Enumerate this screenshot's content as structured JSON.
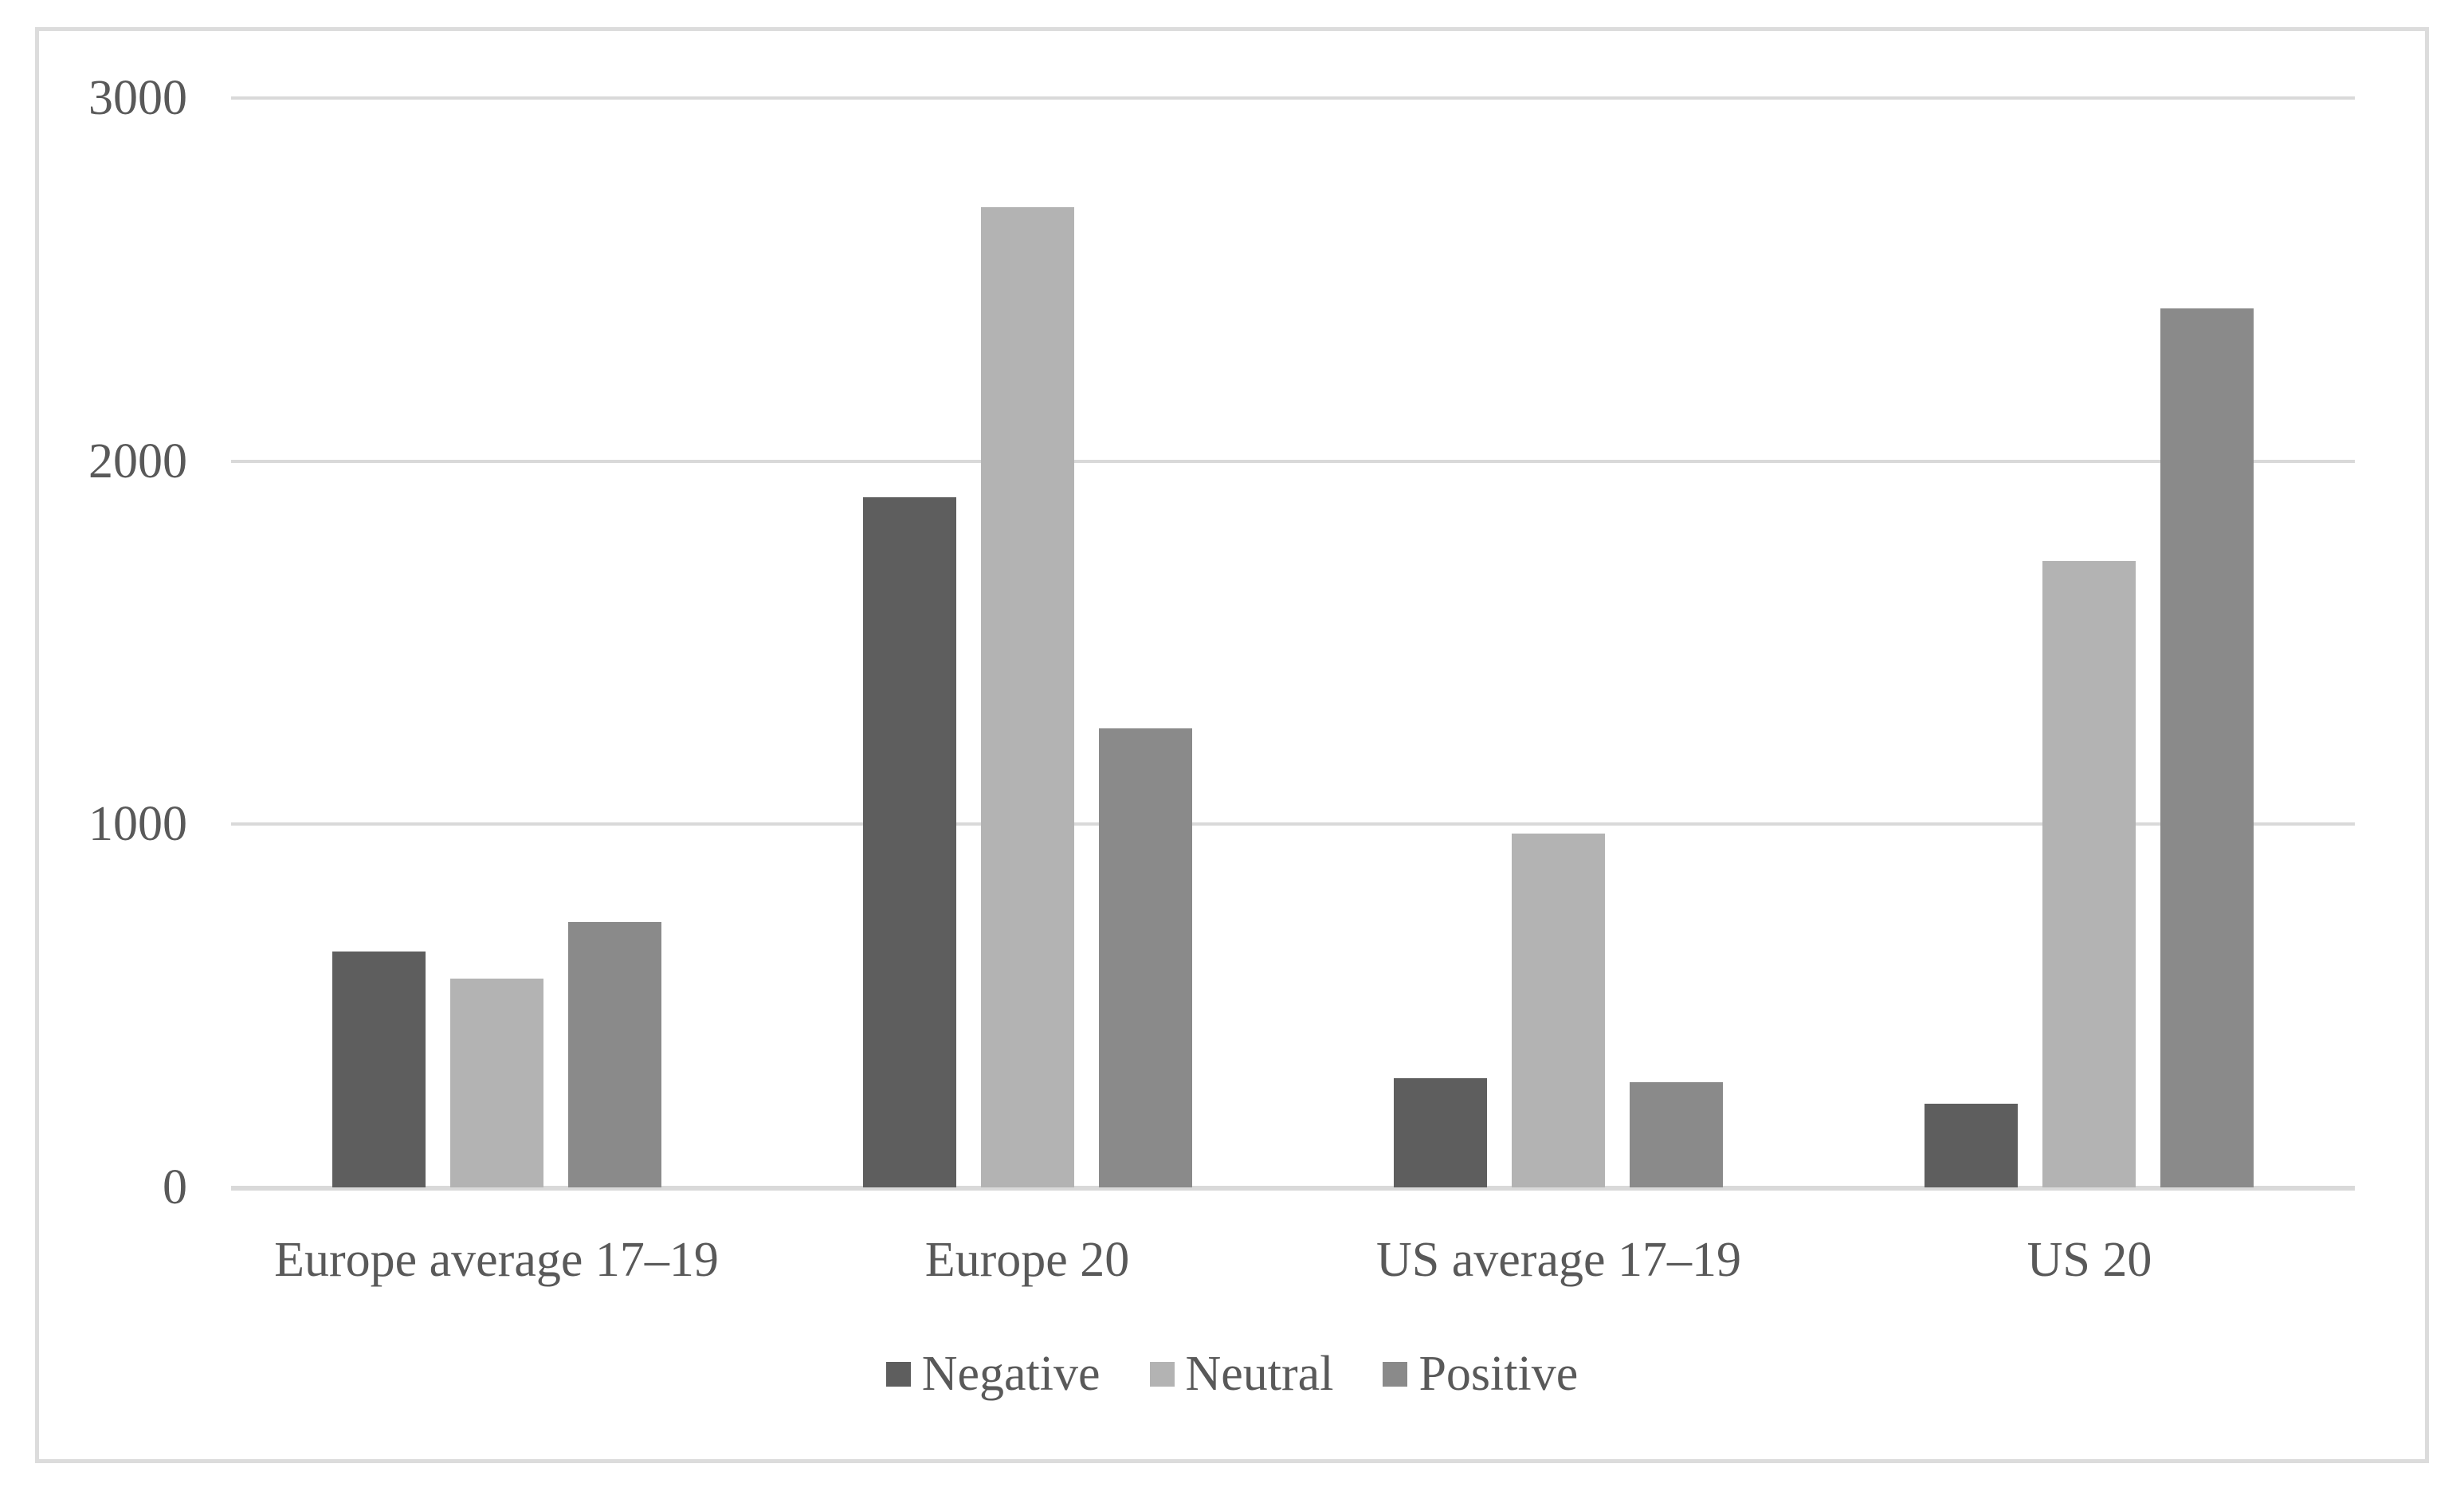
{
  "chart_data": {
    "type": "bar",
    "title": "",
    "xlabel": "",
    "ylabel": "",
    "categories": [
      "Europe average 17–19",
      "Europe 20",
      "US average 17–19",
      "US 20"
    ],
    "series": [
      {
        "name": "Negative",
        "color": "#5e5e5e",
        "values": [
          650,
          1900,
          300,
          230
        ]
      },
      {
        "name": "Neutral",
        "color": "#b3b3b3",
        "values": [
          575,
          2700,
          975,
          1725
        ]
      },
      {
        "name": "Positive",
        "color": "#8a8a8a",
        "values": [
          730,
          1265,
          290,
          2420
        ]
      }
    ],
    "ylim": [
      0,
      3000
    ],
    "yticks": [
      0,
      1000,
      2000,
      3000
    ],
    "grid": true,
    "legend_position": "bottom"
  },
  "colors": {
    "background": "#ffffff",
    "border": "#dcdcdc",
    "gridline": "#d9d9d9",
    "text": "#595959"
  }
}
